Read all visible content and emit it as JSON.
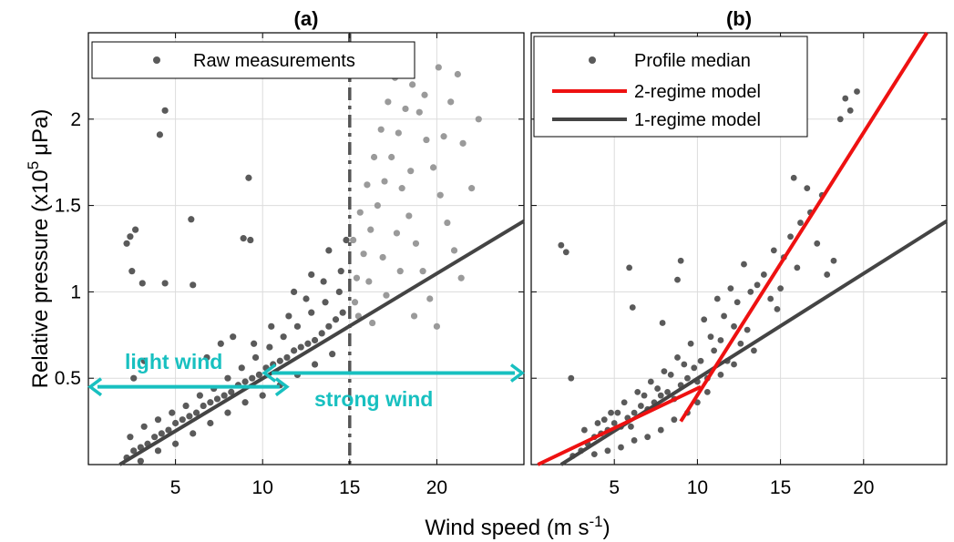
{
  "figure": {
    "xlabel": "Wind speed (m s",
    "xlabel_sup": "-1",
    "xlabel_end": ")",
    "ylabel": "Relative pressure (x10",
    "ylabel_sup": "5",
    "ylabel_end": "μPa)"
  },
  "chart_data": [
    {
      "type": "scatter",
      "title": "(a)",
      "xlabel": "Wind speed (m s-1)",
      "ylabel": "Relative pressure (x10^5 μPa)",
      "xlim": [
        0,
        25
      ],
      "ylim": [
        0,
        2.5
      ],
      "xticks": [
        5,
        10,
        15,
        20
      ],
      "yticks": [
        0.5,
        1,
        1.5,
        2
      ],
      "xtick_labels": [
        "5",
        "10",
        "15",
        "20"
      ],
      "ytick_labels": [
        "0.5",
        "1",
        "1.5",
        "2"
      ],
      "grid": true,
      "legend": {
        "position": "top",
        "entries": [
          "Raw measurements"
        ]
      },
      "colors": {
        "light": "#5a5a5a",
        "strong": "#9a9a9a",
        "fit": "#444444",
        "arrow": "#18c0c0"
      },
      "series": [
        {
          "name": "Raw measurements",
          "points_light": [
            [
              2.2,
              0.04
            ],
            [
              2.6,
              0.08
            ],
            [
              3.0,
              0.1
            ],
            [
              3.4,
              0.12
            ],
            [
              3.8,
              0.16
            ],
            [
              4.2,
              0.18
            ],
            [
              4.6,
              0.2
            ],
            [
              5.0,
              0.24
            ],
            [
              5.4,
              0.26
            ],
            [
              5.8,
              0.28
            ],
            [
              6.2,
              0.3
            ],
            [
              6.6,
              0.34
            ],
            [
              7.0,
              0.36
            ],
            [
              7.4,
              0.38
            ],
            [
              7.8,
              0.4
            ],
            [
              8.2,
              0.42
            ],
            [
              8.6,
              0.46
            ],
            [
              9.0,
              0.48
            ],
            [
              9.4,
              0.5
            ],
            [
              9.8,
              0.52
            ],
            [
              10.2,
              0.56
            ],
            [
              10.6,
              0.58
            ],
            [
              11.0,
              0.6
            ],
            [
              11.4,
              0.62
            ],
            [
              11.8,
              0.66
            ],
            [
              12.2,
              0.68
            ],
            [
              12.6,
              0.7
            ],
            [
              13.0,
              0.72
            ],
            [
              13.4,
              0.76
            ],
            [
              13.8,
              0.8
            ],
            [
              14.2,
              0.84
            ],
            [
              14.6,
              0.88
            ],
            [
              2.4,
              0.16
            ],
            [
              3.2,
              0.22
            ],
            [
              4.0,
              0.26
            ],
            [
              4.8,
              0.3
            ],
            [
              5.6,
              0.34
            ],
            [
              6.4,
              0.4
            ],
            [
              7.2,
              0.44
            ],
            [
              8.0,
              0.5
            ],
            [
              8.8,
              0.56
            ],
            [
              9.6,
              0.62
            ],
            [
              10.4,
              0.68
            ],
            [
              11.2,
              0.74
            ],
            [
              12.0,
              0.8
            ],
            [
              12.8,
              0.88
            ],
            [
              13.6,
              0.94
            ],
            [
              14.4,
              1.0
            ],
            [
              3.0,
              0.02
            ],
            [
              4.0,
              0.08
            ],
            [
              5.0,
              0.12
            ],
            [
              6.0,
              0.18
            ],
            [
              7.0,
              0.24
            ],
            [
              8.0,
              0.3
            ],
            [
              9.0,
              0.36
            ],
            [
              10.0,
              0.4
            ],
            [
              11.0,
              0.46
            ],
            [
              12.0,
              0.52
            ],
            [
              13.0,
              0.58
            ],
            [
              14.0,
              0.64
            ],
            [
              9.5,
              0.7
            ],
            [
              10.5,
              0.8
            ],
            [
              11.5,
              0.86
            ],
            [
              12.5,
              0.96
            ],
            [
              13.5,
              1.06
            ],
            [
              14.5,
              1.12
            ],
            [
              13.8,
              1.24
            ],
            [
              12.8,
              1.1
            ],
            [
              11.8,
              1.0
            ],
            [
              14.8,
              1.3
            ],
            [
              4.1,
              1.91
            ],
            [
              4.4,
              2.05
            ],
            [
              9.2,
              1.66
            ],
            [
              2.4,
              1.32
            ],
            [
              2.7,
              1.36
            ],
            [
              2.2,
              1.28
            ],
            [
              2.5,
              1.12
            ],
            [
              3.1,
              1.05
            ],
            [
              4.4,
              1.05
            ],
            [
              5.9,
              1.42
            ],
            [
              6.0,
              1.04
            ],
            [
              8.9,
              1.31
            ],
            [
              9.3,
              1.3
            ],
            [
              3.2,
              0.6
            ],
            [
              2.6,
              0.5
            ],
            [
              6.8,
              0.62
            ],
            [
              7.6,
              0.7
            ],
            [
              8.3,
              0.74
            ]
          ],
          "points_strong": [
            [
              15.4,
              1.08
            ],
            [
              15.8,
              1.22
            ],
            [
              16.2,
              1.36
            ],
            [
              16.6,
              1.5
            ],
            [
              17.0,
              1.64
            ],
            [
              17.4,
              1.78
            ],
            [
              17.8,
              1.92
            ],
            [
              18.2,
              2.06
            ],
            [
              18.6,
              2.2
            ],
            [
              19.0,
              2.04
            ],
            [
              19.4,
              1.88
            ],
            [
              19.8,
              1.72
            ],
            [
              20.2,
              1.56
            ],
            [
              20.6,
              1.4
            ],
            [
              21.0,
              1.24
            ],
            [
              21.4,
              1.08
            ],
            [
              15.2,
              1.3
            ],
            [
              15.6,
              1.46
            ],
            [
              16.0,
              1.62
            ],
            [
              16.4,
              1.78
            ],
            [
              16.8,
              1.94
            ],
            [
              17.2,
              2.1
            ],
            [
              17.6,
              2.24
            ],
            [
              18.0,
              1.6
            ],
            [
              18.4,
              1.44
            ],
            [
              18.8,
              1.28
            ],
            [
              19.2,
              1.12
            ],
            [
              19.6,
              0.96
            ],
            [
              20.0,
              0.8
            ],
            [
              20.4,
              1.9
            ],
            [
              20.8,
              2.1
            ],
            [
              21.2,
              2.26
            ],
            [
              15.3,
              0.94
            ],
            [
              16.1,
              1.06
            ],
            [
              16.9,
              1.2
            ],
            [
              17.7,
              1.34
            ],
            [
              18.5,
              1.7
            ],
            [
              19.3,
              2.14
            ],
            [
              20.1,
              2.3
            ],
            [
              21.5,
              1.86
            ],
            [
              22.0,
              1.6
            ],
            [
              22.4,
              2.0
            ],
            [
              15.5,
              0.86
            ],
            [
              16.3,
              0.82
            ],
            [
              17.1,
              0.98
            ],
            [
              17.9,
              1.12
            ],
            [
              18.7,
              0.86
            ]
          ]
        },
        {
          "name": "1-regime fit",
          "line": [
            [
              1.8,
              0.0
            ],
            [
              25,
              1.41
            ]
          ]
        }
      ],
      "annotations": [
        {
          "text": "light wind",
          "arrow_x": [
            0,
            11.5
          ],
          "arrow_y": 0.45
        },
        {
          "text": "strong wind",
          "arrow_x": [
            10,
            25
          ],
          "arrow_y": 0.53
        },
        {
          "type": "vline",
          "x": 15
        }
      ]
    },
    {
      "type": "scatter",
      "title": "(b)",
      "xlim": [
        0,
        25
      ],
      "ylim": [
        0,
        2.5
      ],
      "xticks": [
        5,
        10,
        15,
        20
      ],
      "yticks": [
        0.5,
        1,
        1.5,
        2
      ],
      "xtick_labels": [
        "5",
        "10",
        "15",
        "20"
      ],
      "grid": true,
      "legend": {
        "position": "top-left",
        "entries": [
          "Profile median",
          "2-regime model",
          "1-regime model"
        ]
      },
      "colors": {
        "median": "#5a5a5a",
        "two": "#ee1111",
        "one": "#444444"
      },
      "series": [
        {
          "name": "Profile median",
          "points": [
            [
              1.8,
              1.27
            ],
            [
              2.1,
              1.23
            ],
            [
              2.4,
              0.5
            ],
            [
              5.9,
              1.14
            ],
            [
              6.1,
              0.91
            ],
            [
              7.9,
              0.82
            ],
            [
              9.0,
              1.18
            ],
            [
              8.8,
              1.07
            ],
            [
              2.5,
              0.05
            ],
            [
              3.0,
              0.08
            ],
            [
              3.4,
              0.12
            ],
            [
              3.8,
              0.16
            ],
            [
              4.2,
              0.18
            ],
            [
              4.6,
              0.2
            ],
            [
              5.0,
              0.24
            ],
            [
              5.4,
              0.22
            ],
            [
              5.8,
              0.27
            ],
            [
              6.2,
              0.3
            ],
            [
              6.6,
              0.34
            ],
            [
              7.0,
              0.32
            ],
            [
              7.4,
              0.36
            ],
            [
              7.8,
              0.4
            ],
            [
              8.2,
              0.42
            ],
            [
              8.6,
              0.38
            ],
            [
              9.0,
              0.46
            ],
            [
              9.4,
              0.5
            ],
            [
              9.8,
              0.56
            ],
            [
              10.2,
              0.6
            ],
            [
              10.6,
              0.5
            ],
            [
              11.0,
              0.66
            ],
            [
              11.4,
              0.72
            ],
            [
              11.8,
              0.6
            ],
            [
              12.2,
              0.8
            ],
            [
              12.6,
              0.7
            ],
            [
              13.0,
              0.78
            ],
            [
              3.2,
              0.2
            ],
            [
              4.4,
              0.26
            ],
            [
              5.2,
              0.3
            ],
            [
              6.0,
              0.22
            ],
            [
              6.8,
              0.4
            ],
            [
              7.6,
              0.44
            ],
            [
              8.4,
              0.52
            ],
            [
              9.2,
              0.58
            ],
            [
              10.0,
              0.48
            ],
            [
              10.8,
              0.74
            ],
            [
              11.6,
              0.86
            ],
            [
              12.4,
              0.94
            ],
            [
              13.2,
              1.0
            ],
            [
              14.0,
              1.1
            ],
            [
              14.4,
              0.96
            ],
            [
              14.8,
              0.9
            ],
            [
              15.2,
              1.2
            ],
            [
              15.6,
              1.32
            ],
            [
              16.2,
              1.4
            ],
            [
              16.8,
              1.46
            ],
            [
              17.2,
              1.28
            ],
            [
              17.8,
              1.1
            ],
            [
              18.2,
              1.18
            ],
            [
              18.6,
              2.0
            ],
            [
              18.9,
              2.12
            ],
            [
              19.2,
              2.05
            ],
            [
              19.6,
              2.16
            ],
            [
              17.5,
              1.56
            ],
            [
              16.6,
              1.6
            ],
            [
              15.8,
              1.66
            ],
            [
              16.0,
              1.14
            ],
            [
              15.0,
              1.02
            ],
            [
              14.6,
              1.24
            ],
            [
              12.8,
              1.16
            ],
            [
              13.6,
              1.04
            ],
            [
              12.0,
              1.02
            ],
            [
              11.2,
              0.96
            ],
            [
              10.4,
              0.84
            ],
            [
              9.6,
              0.7
            ],
            [
              8.8,
              0.62
            ],
            [
              8.0,
              0.54
            ],
            [
              7.2,
              0.48
            ],
            [
              6.4,
              0.42
            ],
            [
              5.6,
              0.36
            ],
            [
              4.8,
              0.3
            ],
            [
              4.0,
              0.24
            ],
            [
              10.0,
              0.36
            ],
            [
              10.6,
              0.42
            ],
            [
              11.4,
              0.52
            ],
            [
              12.2,
              0.58
            ],
            [
              13.4,
              0.66
            ],
            [
              9.4,
              0.3
            ],
            [
              8.6,
              0.26
            ],
            [
              7.8,
              0.2
            ],
            [
              7.0,
              0.16
            ],
            [
              6.2,
              0.14
            ],
            [
              5.4,
              0.1
            ],
            [
              4.6,
              0.08
            ],
            [
              3.8,
              0.06
            ]
          ]
        },
        {
          "name": "2-regime model",
          "segments": [
            [
              [
                0.4,
                0.0
              ],
              [
                10.2,
                0.45
              ]
            ],
            [
              [
                9.0,
                0.25
              ],
              [
                23.8,
                2.5
              ]
            ]
          ]
        },
        {
          "name": "1-regime model",
          "line": [
            [
              1.8,
              0.0
            ],
            [
              25,
              1.41
            ]
          ]
        }
      ]
    }
  ]
}
